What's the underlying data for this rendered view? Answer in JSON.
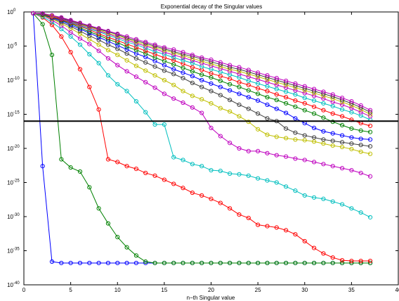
{
  "chart_data": {
    "type": "line",
    "title": "Exponential decay of the Singular values",
    "xlabel": "n−th Singular value",
    "ylabel": "",
    "y_scale": "log",
    "xlim": [
      0,
      40
    ],
    "ylim": [
      1e-40,
      1
    ],
    "grid": false,
    "x_tick_labels": [
      "0",
      "5",
      "10",
      "15",
      "20",
      "25",
      "30",
      "35",
      "40"
    ],
    "y_tick_labels": [
      {
        "base": "10",
        "exp": "0"
      },
      {
        "base": "10",
        "exp": "-5"
      },
      {
        "base": "10",
        "exp": "-10"
      },
      {
        "base": "10",
        "exp": "-15"
      },
      {
        "base": "10",
        "exp": "-20"
      },
      {
        "base": "10",
        "exp": "-25"
      },
      {
        "base": "10",
        "exp": "-30"
      },
      {
        "base": "10",
        "exp": "-35"
      },
      {
        "base": "10",
        "exp": "-40"
      }
    ],
    "reference_line": {
      "y": 1e-16,
      "color": "#000000"
    },
    "x": [
      1,
      2,
      3,
      4,
      5,
      6,
      7,
      8,
      9,
      10,
      11,
      12,
      13,
      14,
      15,
      16,
      17,
      18,
      19,
      20,
      21,
      22,
      23,
      24,
      25,
      26,
      27,
      28,
      29,
      30,
      31,
      32,
      33,
      34,
      35,
      36,
      37
    ],
    "series": [
      {
        "color": "#0000ff",
        "log10_values": [
          -0.2,
          -22.6,
          -36.6,
          -36.8,
          -36.8,
          -36.8,
          -36.8,
          -36.8,
          -36.8,
          -36.8,
          -36.8,
          -36.8,
          -36.8,
          -36.8,
          -36.8,
          -36.8,
          -36.8,
          -36.8,
          -36.8,
          -36.8,
          -36.8,
          -36.8,
          -36.8,
          -36.8,
          -36.8,
          -36.8,
          -36.8,
          -36.8,
          -36.8,
          -36.8,
          -36.8,
          -36.8,
          -36.8,
          -36.8,
          -36.8,
          -36.8,
          -36.8
        ]
      },
      {
        "color": "#008000",
        "log10_values": [
          -0.2,
          -1.8,
          -6.3,
          -21.6,
          -22.8,
          -23.4,
          -25.7,
          -28.8,
          -31.0,
          -33.0,
          -34.5,
          -35.7,
          -36.6,
          -36.8,
          -36.8,
          -36.8,
          -36.8,
          -36.8,
          -36.8,
          -36.8,
          -36.8,
          -36.8,
          -36.8,
          -36.8,
          -36.8,
          -36.8,
          -36.8,
          -36.8,
          -36.8,
          -36.8,
          -36.8,
          -36.8,
          -36.8,
          -36.8,
          -36.8,
          -36.8,
          -36.8
        ]
      },
      {
        "color": "#ff0000",
        "log10_values": [
          -0.2,
          -0.8,
          -1.9,
          -3.6,
          -5.9,
          -8.4,
          -11.0,
          -14.3,
          -21.6,
          -22.0,
          -22.6,
          -23.0,
          -23.6,
          -24.0,
          -24.6,
          -25.2,
          -25.8,
          -26.5,
          -26.9,
          -27.4,
          -28.0,
          -28.8,
          -29.7,
          -30.2,
          -31.2,
          -31.4,
          -31.6,
          -32.0,
          -32.6,
          -33.6,
          -34.6,
          -35.4,
          -36.0,
          -36.4,
          -36.5,
          -36.5,
          -36.5
        ]
      },
      {
        "color": "#00bfbf",
        "log10_values": [
          -0.2,
          -0.7,
          -1.5,
          -2.5,
          -3.6,
          -4.8,
          -6.2,
          -7.5,
          -9.3,
          -10.6,
          -11.6,
          -13.1,
          -14.7,
          -16.5,
          -16.5,
          -21.3,
          -21.7,
          -22.3,
          -22.6,
          -23.2,
          -23.3,
          -23.7,
          -23.8,
          -24.0,
          -24.4,
          -24.7,
          -25.0,
          -25.6,
          -26.2,
          -26.9,
          -27.2,
          -27.4,
          -27.8,
          -28.2,
          -28.8,
          -29.4,
          -30.1
        ]
      },
      {
        "color": "#bf00bf",
        "log10_values": [
          -0.2,
          -0.5,
          -1.2,
          -2.0,
          -3.0,
          -3.9,
          -4.7,
          -5.7,
          -6.8,
          -7.8,
          -8.7,
          -9.5,
          -10.3,
          -11.1,
          -12.0,
          -12.7,
          -13.3,
          -14.0,
          -14.8,
          -17.0,
          -18.2,
          -19.2,
          -20.0,
          -20.4,
          -20.4,
          -20.7,
          -21.0,
          -21.2,
          -21.5,
          -21.7,
          -22.0,
          -22.3,
          -22.6,
          -22.9,
          -23.2,
          -23.6,
          -24.1
        ]
      },
      {
        "color": "#bfbf00",
        "log10_values": [
          -0.2,
          -0.5,
          -1.0,
          -1.7,
          -2.4,
          -3.2,
          -4.0,
          -4.8,
          -5.6,
          -6.3,
          -7.1,
          -7.9,
          -8.6,
          -9.3,
          -10.0,
          -10.7,
          -11.6,
          -12.3,
          -12.8,
          -13.4,
          -14.1,
          -14.6,
          -15.3,
          -16.1,
          -17.2,
          -18.0,
          -18.3,
          -18.5,
          -18.7,
          -18.8,
          -19.0,
          -19.3,
          -19.6,
          -19.8,
          -20.1,
          -20.5,
          -20.8
        ]
      },
      {
        "color": "#404040",
        "log10_values": [
          -0.2,
          -0.4,
          -0.9,
          -1.5,
          -2.1,
          -2.8,
          -3.5,
          -4.1,
          -4.8,
          -5.4,
          -6.1,
          -6.8,
          -7.4,
          -8.0,
          -8.6,
          -9.1,
          -9.7,
          -10.4,
          -11.0,
          -11.6,
          -12.2,
          -12.9,
          -13.6,
          -14.2,
          -14.9,
          -15.6,
          -16.0,
          -17.1,
          -17.7,
          -18.1,
          -18.4,
          -18.7,
          -18.9,
          -19.1,
          -19.3,
          -19.5,
          -19.7
        ]
      },
      {
        "color": "#0000ff",
        "log10_values": [
          -0.2,
          -0.4,
          -0.8,
          -1.3,
          -1.9,
          -2.5,
          -3.1,
          -3.7,
          -4.3,
          -4.9,
          -5.5,
          -6.1,
          -6.6,
          -7.2,
          -7.8,
          -8.4,
          -8.9,
          -9.4,
          -10.0,
          -10.5,
          -11.0,
          -11.5,
          -12.0,
          -12.5,
          -13.0,
          -13.6,
          -14.2,
          -14.8,
          -15.6,
          -16.3,
          -17.0,
          -17.5,
          -17.8,
          -18.1,
          -18.4,
          -18.6,
          -18.7
        ]
      },
      {
        "color": "#008000",
        "log10_values": [
          -0.2,
          -0.4,
          -0.7,
          -1.2,
          -1.7,
          -2.3,
          -2.9,
          -3.4,
          -4.0,
          -4.5,
          -5.1,
          -5.6,
          -6.1,
          -6.7,
          -7.2,
          -7.7,
          -8.2,
          -8.7,
          -9.2,
          -9.6,
          -10.1,
          -10.6,
          -11.0,
          -11.5,
          -12.0,
          -12.5,
          -12.9,
          -13.4,
          -13.9,
          -14.4,
          -14.9,
          -15.5,
          -16.1,
          -16.6,
          -17.1,
          -17.4,
          -17.6
        ]
      },
      {
        "color": "#ff0000",
        "log10_values": [
          -0.2,
          -0.3,
          -0.7,
          -1.1,
          -1.6,
          -2.1,
          -2.6,
          -3.2,
          -3.7,
          -4.2,
          -4.7,
          -5.2,
          -5.7,
          -6.2,
          -6.7,
          -7.1,
          -7.6,
          -8.1,
          -8.5,
          -9.0,
          -9.4,
          -9.8,
          -10.3,
          -10.7,
          -11.2,
          -11.6,
          -12.1,
          -12.5,
          -13.0,
          -13.4,
          -13.9,
          -14.4,
          -14.9,
          -15.3,
          -15.8,
          -16.3,
          -16.7
        ]
      },
      {
        "color": "#00bfbf",
        "log10_values": [
          -0.2,
          -0.3,
          -0.6,
          -1.0,
          -1.5,
          -2.0,
          -2.5,
          -2.9,
          -3.4,
          -3.9,
          -4.4,
          -4.8,
          -5.3,
          -5.8,
          -6.2,
          -6.7,
          -7.1,
          -7.5,
          -8.0,
          -8.4,
          -8.8,
          -9.2,
          -9.6,
          -10.1,
          -10.5,
          -10.9,
          -11.3,
          -11.7,
          -12.1,
          -12.6,
          -13.0,
          -13.4,
          -13.8,
          -14.3,
          -14.7,
          -15.2,
          -15.8
        ]
      },
      {
        "color": "#bf00bf",
        "log10_values": [
          -0.2,
          -0.3,
          -0.6,
          -1.0,
          -1.4,
          -1.9,
          -2.3,
          -2.8,
          -3.2,
          -3.7,
          -4.1,
          -4.6,
          -5.0,
          -5.4,
          -5.9,
          -6.3,
          -6.7,
          -7.1,
          -7.5,
          -7.9,
          -8.3,
          -8.7,
          -9.1,
          -9.5,
          -9.9,
          -10.3,
          -10.7,
          -11.1,
          -11.5,
          -11.9,
          -12.3,
          -12.7,
          -13.2,
          -13.6,
          -14.1,
          -14.7,
          -15.3
        ]
      },
      {
        "color": "#bfbf00",
        "log10_values": [
          -0.2,
          -0.3,
          -0.6,
          -0.9,
          -1.3,
          -1.8,
          -2.2,
          -2.6,
          -3.1,
          -3.5,
          -3.9,
          -4.4,
          -4.8,
          -5.2,
          -5.6,
          -6.0,
          -6.4,
          -6.8,
          -7.2,
          -7.6,
          -8.0,
          -8.4,
          -8.7,
          -9.1,
          -9.5,
          -9.9,
          -10.3,
          -10.7,
          -11.1,
          -11.5,
          -11.9,
          -12.3,
          -12.7,
          -13.2,
          -13.7,
          -14.3,
          -15.0
        ]
      },
      {
        "color": "#404040",
        "log10_values": [
          -0.2,
          -0.3,
          -0.5,
          -0.9,
          -1.3,
          -1.7,
          -2.1,
          -2.5,
          -2.9,
          -3.3,
          -3.8,
          -4.2,
          -4.6,
          -5.0,
          -5.4,
          -5.8,
          -6.2,
          -6.5,
          -6.9,
          -7.3,
          -7.7,
          -8.1,
          -8.4,
          -8.8,
          -9.2,
          -9.6,
          -10.0,
          -10.4,
          -10.8,
          -11.2,
          -11.6,
          -12.0,
          -12.4,
          -12.9,
          -13.4,
          -14.0,
          -14.7
        ]
      },
      {
        "color": "#bf00bf",
        "log10_values": [
          -0.2,
          -0.2,
          -0.5,
          -0.8,
          -1.2,
          -1.6,
          -2.0,
          -2.4,
          -2.8,
          -3.2,
          -3.6,
          -4.0,
          -4.4,
          -4.8,
          -5.2,
          -5.5,
          -5.9,
          -6.3,
          -6.7,
          -7.0,
          -7.4,
          -7.8,
          -8.1,
          -8.5,
          -8.9,
          -9.3,
          -9.7,
          -10.1,
          -10.5,
          -10.9,
          -11.3,
          -11.7,
          -12.1,
          -12.6,
          -13.1,
          -13.7,
          -14.4
        ]
      }
    ]
  }
}
